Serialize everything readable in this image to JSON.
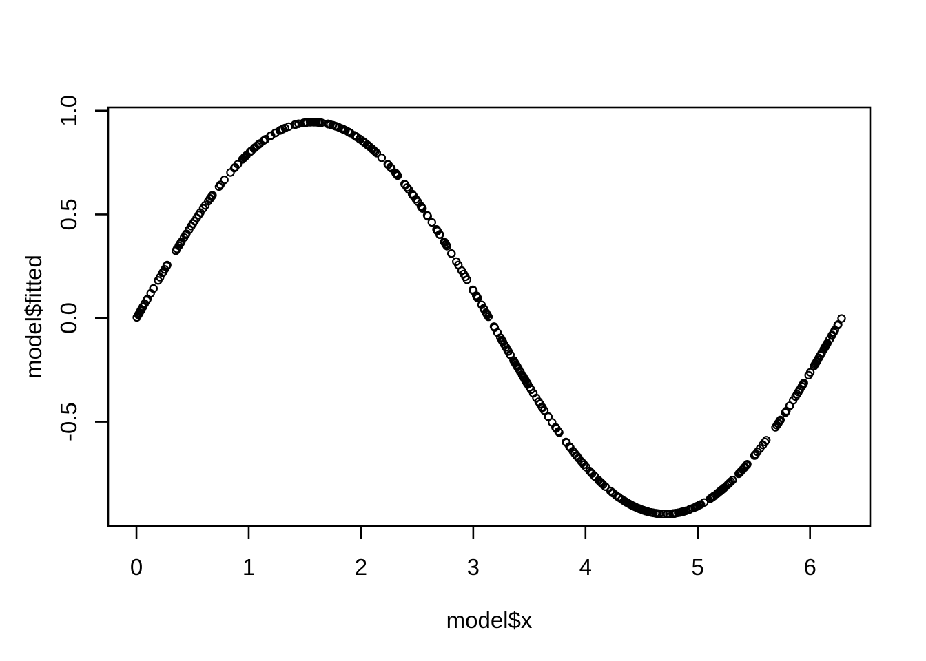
{
  "chart_data": {
    "type": "scatter",
    "title": "",
    "xlabel": "model$x",
    "ylabel": "model$fitted",
    "x_ticks": {
      "values": [
        0,
        1,
        2,
        3,
        4,
        5,
        6
      ],
      "labels": [
        "0",
        "1",
        "2",
        "3",
        "4",
        "5",
        "6"
      ]
    },
    "y_ticks": {
      "values": [
        -0.5,
        0.0,
        0.5,
        1.0
      ],
      "labels": [
        "-0.5",
        "0.0",
        "0.5",
        "1.0"
      ]
    },
    "xlim": [
      -0.252,
      6.536
    ],
    "ylim": [
      -1.003,
      1.016
    ],
    "grid": false,
    "legend": null,
    "curve": {
      "function": "y = amplitude * sin(x)",
      "amplitude": 0.945,
      "x_range": [
        0.0,
        6.283
      ],
      "y_max_observed": 0.945,
      "y_min_observed": -0.945
    },
    "points_generator": {
      "n": 500,
      "seed": 7,
      "distribution": "uniform",
      "x_min": 0.0,
      "x_max": 6.283
    },
    "marker": {
      "shape": "open-circle",
      "color": "#000000",
      "radius_px": 5.1,
      "stroke_width_px": 2.2
    },
    "axis_color": "#000000",
    "background_color": "#ffffff"
  }
}
